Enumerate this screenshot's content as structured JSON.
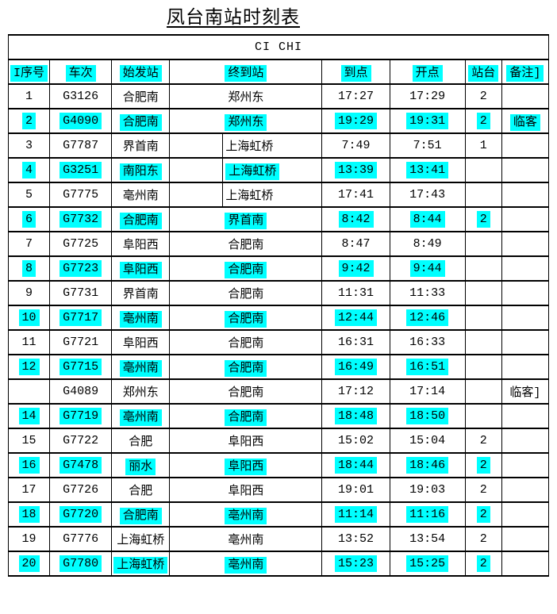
{
  "title": "凤台南站时刻表",
  "colors": {
    "highlight": "#00ffff",
    "text": "#000000",
    "border": "#000000",
    "page_background": "#ffffff"
  },
  "table": {
    "banner": "CI CHI",
    "headers": [
      "I序号",
      "车次",
      "始发站",
      "终到站",
      "到点",
      "开点",
      "站台",
      "备注]"
    ],
    "rows": [
      {
        "seq": "1",
        "train": "G3126",
        "origin": "合肥南",
        "dest": "郑州东",
        "destSplit": false,
        "arr": "17:27",
        "dep": "17:29",
        "platform": "2",
        "remark": "",
        "hl": false
      },
      {
        "seq": "2",
        "train": "G4090",
        "origin": "合肥南",
        "dest": "郑州东",
        "destSplit": false,
        "arr": "19:29",
        "dep": "19:31",
        "platform": "2",
        "remark": "临客",
        "hl": true
      },
      {
        "seq": "3",
        "train": "G7787",
        "origin": "界首南",
        "dest": "上海虹桥",
        "destSplit": true,
        "arr": "7:49",
        "dep": "7:51",
        "platform": "1",
        "remark": "",
        "hl": false
      },
      {
        "seq": "4",
        "train": "G3251",
        "origin": "南阳东",
        "dest": "上海虹桥",
        "destSplit": true,
        "arr": "13:39",
        "dep": "13:41",
        "platform": "",
        "remark": "",
        "hl": true
      },
      {
        "seq": "5",
        "train": "G7775",
        "origin": "亳州南",
        "dest": "上海虹桥",
        "destSplit": true,
        "arr": "17:41",
        "dep": "17:43",
        "platform": "",
        "remark": "",
        "hl": false
      },
      {
        "seq": "6",
        "train": "G7732",
        "origin": "合肥南",
        "dest": "界首南",
        "destSplit": false,
        "arr": "8:42",
        "dep": "8:44",
        "platform": "2",
        "remark": "",
        "hl": true
      },
      {
        "seq": "7",
        "train": "G7725",
        "origin": "阜阳西",
        "dest": "合肥南",
        "destSplit": false,
        "arr": "8:47",
        "dep": "8:49",
        "platform": "",
        "remark": "",
        "hl": false
      },
      {
        "seq": "8",
        "train": "G7723",
        "origin": "阜阳西",
        "dest": "合肥南",
        "destSplit": false,
        "arr": "9:42",
        "dep": "9:44",
        "platform": "",
        "remark": "",
        "hl": true
      },
      {
        "seq": "9",
        "train": "G7731",
        "origin": "界首南",
        "dest": "合肥南",
        "destSplit": false,
        "arr": "11:31",
        "dep": "11:33",
        "platform": "",
        "remark": "",
        "hl": false
      },
      {
        "seq": "10",
        "train": "G7717",
        "origin": "亳州南",
        "dest": "合肥南",
        "destSplit": false,
        "arr": "12:44",
        "dep": "12:46",
        "platform": "",
        "remark": "",
        "hl": true
      },
      {
        "seq": "11",
        "train": "G7721",
        "origin": "阜阳西",
        "dest": "合肥南",
        "destSplit": false,
        "arr": "16:31",
        "dep": "16:33",
        "platform": "",
        "remark": "",
        "hl": false
      },
      {
        "seq": "12",
        "train": "G7715",
        "origin": "亳州南",
        "dest": "合肥南",
        "destSplit": false,
        "arr": "16:49",
        "dep": "16:51",
        "platform": "",
        "remark": "",
        "hl": true
      },
      {
        "seq": "",
        "train": "G4089",
        "origin": "郑州东",
        "dest": "合肥南",
        "destSplit": false,
        "arr": "17:12",
        "dep": "17:14",
        "platform": "",
        "remark": "临客]",
        "hl": false
      },
      {
        "seq": "14",
        "train": "G7719",
        "origin": "亳州南",
        "dest": "合肥南",
        "destSplit": false,
        "arr": "18:48",
        "dep": "18:50",
        "platform": "",
        "remark": "",
        "hl": true
      },
      {
        "seq": "15",
        "train": "G7722",
        "origin": "合肥",
        "dest": "阜阳西",
        "destSplit": false,
        "arr": "15:02",
        "dep": "15:04",
        "platform": "2",
        "remark": "",
        "hl": false
      },
      {
        "seq": "16",
        "train": "G7478",
        "origin": "丽水",
        "dest": "阜阳西",
        "destSplit": false,
        "arr": "18:44",
        "dep": "18:46",
        "platform": "2",
        "remark": "",
        "hl": true
      },
      {
        "seq": "17",
        "train": "G7726",
        "origin": "合肥",
        "dest": "阜阳西",
        "destSplit": false,
        "arr": "19:01",
        "dep": "19:03",
        "platform": "2",
        "remark": "",
        "hl": false
      },
      {
        "seq": "18",
        "train": "G7720",
        "origin": "合肥南",
        "dest": "亳州南",
        "destSplit": false,
        "arr": "11:14",
        "dep": "11:16",
        "platform": "2",
        "remark": "",
        "hl": true
      },
      {
        "seq": "19",
        "train": "G7776",
        "origin": "上海虹桥",
        "dest": "亳州南",
        "destSplit": false,
        "arr": "13:52",
        "dep": "13:54",
        "platform": "2",
        "remark": "",
        "hl": false
      },
      {
        "seq": "20",
        "train": "G7780",
        "origin": "上海虹桥",
        "dest": "亳州南",
        "destSplit": false,
        "arr": "15:23",
        "dep": "15:25",
        "platform": "2",
        "remark": "",
        "hl": true
      }
    ]
  }
}
